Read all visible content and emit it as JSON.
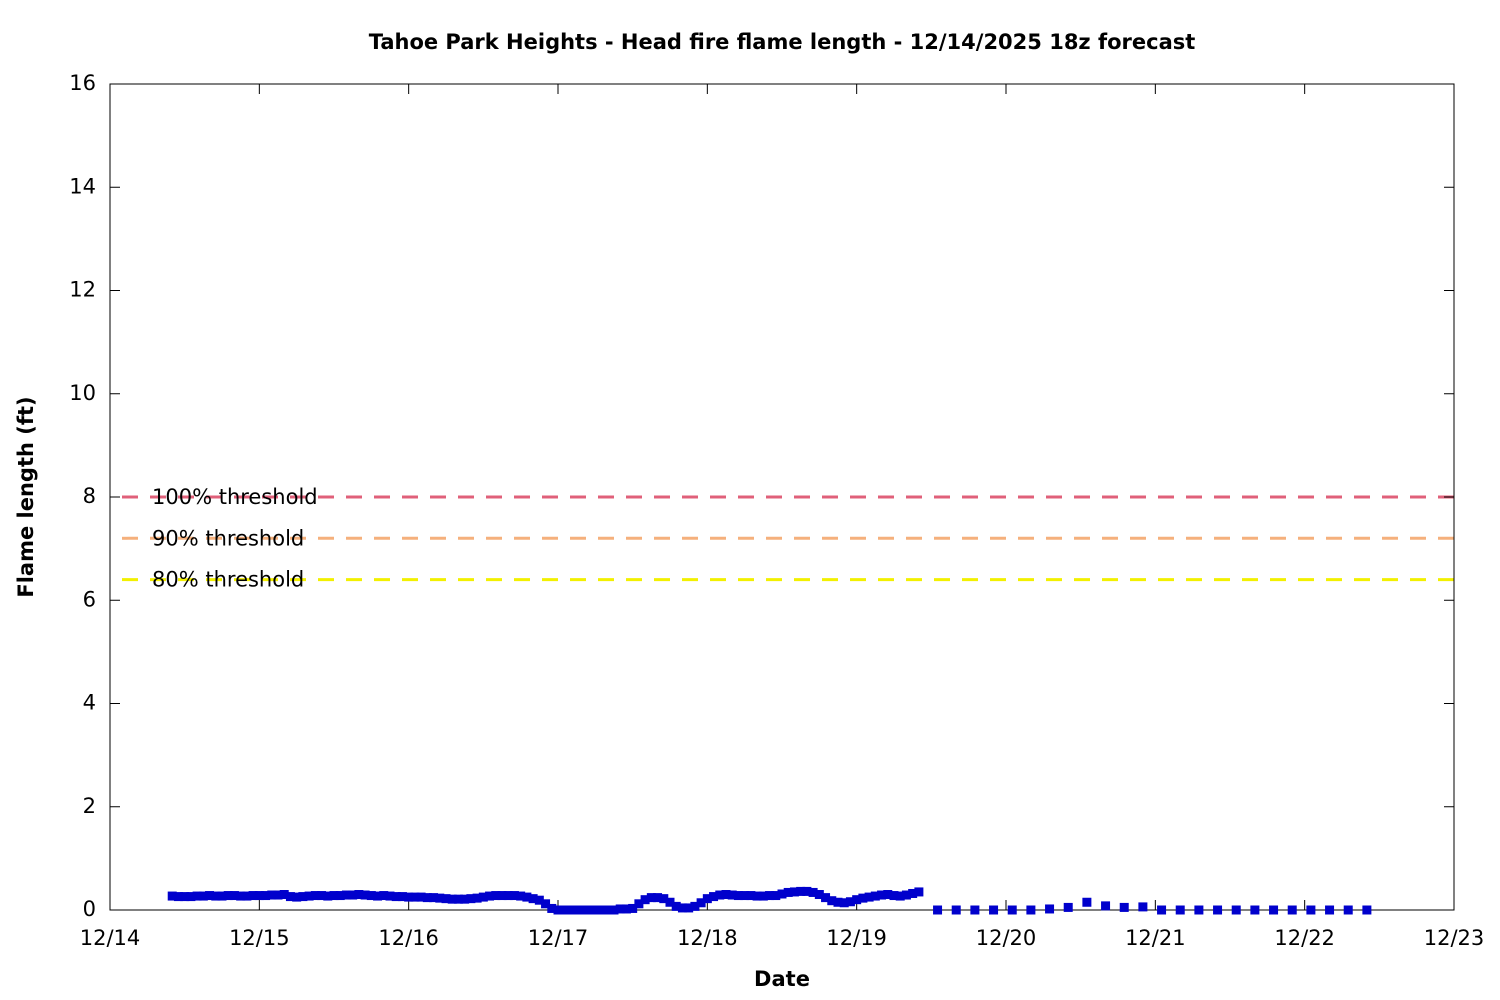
{
  "chart_data": {
    "type": "scatter",
    "title": "Tahoe Park Heights - Head fire flame length - 12/14/2025 18z forecast",
    "xlabel": "Date",
    "ylabel": "Flame length (ft)",
    "xlim": [
      0,
      216
    ],
    "xticks": [
      {
        "value": 0,
        "label": "12/14"
      },
      {
        "value": 24,
        "label": "12/15"
      },
      {
        "value": 48,
        "label": "12/16"
      },
      {
        "value": 72,
        "label": "12/17"
      },
      {
        "value": 96,
        "label": "12/18"
      },
      {
        "value": 120,
        "label": "12/19"
      },
      {
        "value": 144,
        "label": "12/20"
      },
      {
        "value": 168,
        "label": "12/21"
      },
      {
        "value": 192,
        "label": "12/22"
      },
      {
        "value": 216,
        "label": "12/23"
      }
    ],
    "ylim": [
      0,
      16
    ],
    "yticks": [
      0,
      2,
      4,
      6,
      8,
      10,
      12,
      14,
      16
    ],
    "thresholds": [
      {
        "name": "100% threshold",
        "value": 8,
        "color": "#e0607a"
      },
      {
        "name": "90% threshold",
        "value": 7.2,
        "color": "#f5b07c"
      },
      {
        "name": "80% threshold",
        "value": 6.4,
        "color": "#f2f000"
      }
    ],
    "series": [
      {
        "color": "#0000cc",
        "x": [
          10,
          11,
          12,
          13,
          14,
          15,
          16,
          17,
          18,
          19,
          20,
          21,
          22,
          23,
          24,
          25,
          26,
          27,
          28,
          29,
          30,
          31,
          32,
          33,
          34,
          35,
          36,
          37,
          38,
          39,
          40,
          41,
          42,
          43,
          44,
          45,
          46,
          47,
          48,
          49,
          50,
          51,
          52,
          53,
          54,
          55,
          56,
          57,
          58,
          59,
          60,
          61,
          62,
          63,
          64,
          65,
          66,
          67,
          68,
          69,
          70,
          71,
          72,
          73,
          74,
          75,
          76,
          77,
          78,
          79,
          80,
          81,
          82,
          83,
          84,
          85,
          86,
          87,
          88,
          89,
          90,
          91,
          92,
          93,
          94,
          95,
          96,
          97,
          98,
          99,
          100,
          101,
          102,
          103,
          104,
          105,
          106,
          107,
          108,
          109,
          110,
          111,
          112,
          113,
          114,
          115,
          116,
          117,
          118,
          119,
          120,
          121,
          122,
          123,
          124,
          125,
          126,
          127,
          128,
          129,
          130,
          133,
          136,
          139,
          142,
          145,
          148,
          151,
          154,
          157,
          160,
          163,
          166,
          169,
          172,
          175,
          178,
          181,
          184,
          187,
          190,
          193,
          196,
          199,
          202
        ],
        "values": [
          0.27,
          0.26,
          0.26,
          0.26,
          0.27,
          0.27,
          0.28,
          0.27,
          0.27,
          0.28,
          0.28,
          0.27,
          0.27,
          0.28,
          0.28,
          0.28,
          0.29,
          0.29,
          0.3,
          0.26,
          0.25,
          0.26,
          0.27,
          0.28,
          0.28,
          0.27,
          0.28,
          0.28,
          0.29,
          0.29,
          0.3,
          0.29,
          0.28,
          0.27,
          0.28,
          0.27,
          0.26,
          0.26,
          0.25,
          0.25,
          0.25,
          0.24,
          0.24,
          0.23,
          0.22,
          0.21,
          0.21,
          0.21,
          0.22,
          0.23,
          0.25,
          0.27,
          0.28,
          0.28,
          0.28,
          0.28,
          0.27,
          0.25,
          0.22,
          0.19,
          0.12,
          0.03,
          0,
          0,
          0,
          0,
          0,
          0,
          0,
          0,
          0,
          0,
          0.02,
          0.02,
          0.03,
          0.12,
          0.2,
          0.24,
          0.24,
          0.22,
          0.15,
          0.07,
          0.04,
          0.04,
          0.07,
          0.14,
          0.22,
          0.26,
          0.29,
          0.3,
          0.29,
          0.28,
          0.28,
          0.28,
          0.27,
          0.27,
          0.28,
          0.28,
          0.31,
          0.34,
          0.35,
          0.36,
          0.36,
          0.34,
          0.3,
          0.24,
          0.18,
          0.15,
          0.14,
          0.16,
          0.2,
          0.23,
          0.25,
          0.27,
          0.29,
          0.3,
          0.28,
          0.27,
          0.29,
          0.32,
          0.35,
          0,
          0,
          0,
          0,
          0,
          0,
          0.02,
          0.05,
          0.15,
          0.08,
          0.05,
          0.06,
          0,
          0,
          0,
          0,
          0,
          0,
          0,
          0,
          0,
          0,
          0,
          0
        ]
      }
    ]
  }
}
